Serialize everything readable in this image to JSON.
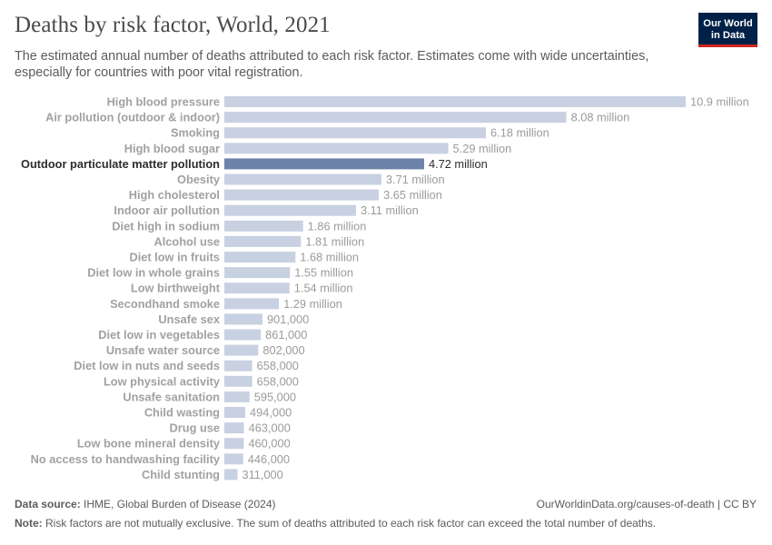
{
  "header": {
    "title": "Deaths by risk factor, World, 2021",
    "subtitle": "The estimated annual number of deaths attributed to each risk factor. Estimates come with wide uncertainties, especially for countries with poor vital registration.",
    "logo_line1": "Our World",
    "logo_line2": "in Data"
  },
  "footer": {
    "source_label": "Data source:",
    "source_text": "IHME, Global Burden of Disease (2024)",
    "url_text": "OurWorldinData.org/causes-of-death | CC BY",
    "note_label": "Note:",
    "note_text": "Risk factors are not mutually exclusive. The sum of deaths attributed to each risk factor can exceed the total number of deaths."
  },
  "colors": {
    "bar": "#c8d1e2",
    "bar_highlight": "#6d82a8",
    "label": "#a1a1a1",
    "label_highlight": "#2d2d2d",
    "value_label": "#9b9b9b",
    "value_label_highlight": "#2d2d2d"
  },
  "chart_data": {
    "type": "bar",
    "orientation": "horizontal",
    "highlighted": "Outdoor particulate matter pollution",
    "categories": [
      "High blood pressure",
      "Air pollution (outdoor & indoor)",
      "Smoking",
      "High blood sugar",
      "Outdoor particulate matter pollution",
      "Obesity",
      "High cholesterol",
      "Indoor air pollution",
      "Diet high in sodium",
      "Alcohol use",
      "Diet low in fruits",
      "Diet low in whole grains",
      "Low birthweight",
      "Secondhand smoke",
      "Unsafe sex",
      "Diet low in vegetables",
      "Unsafe water source",
      "Diet low in nuts and seeds",
      "Low physical activity",
      "Unsafe sanitation",
      "Child wasting",
      "Drug use",
      "Low bone mineral density",
      "No access to handwashing facility",
      "Child stunting"
    ],
    "values": [
      10900000,
      8080000,
      6180000,
      5290000,
      4720000,
      3710000,
      3650000,
      3110000,
      1860000,
      1810000,
      1680000,
      1550000,
      1540000,
      1290000,
      901000,
      861000,
      802000,
      658000,
      658000,
      595000,
      494000,
      463000,
      460000,
      446000,
      311000
    ],
    "value_labels": [
      "10.9 million",
      "8.08 million",
      "6.18 million",
      "5.29 million",
      "4.72 million",
      "3.71 million",
      "3.65 million",
      "3.11 million",
      "1.86 million",
      "1.81 million",
      "1.68 million",
      "1.55 million",
      "1.54 million",
      "1.29 million",
      "901,000",
      "861,000",
      "802,000",
      "658,000",
      "658,000",
      "595,000",
      "494,000",
      "463,000",
      "460,000",
      "446,000",
      "311,000"
    ],
    "xlim": [
      0,
      10900000
    ]
  }
}
